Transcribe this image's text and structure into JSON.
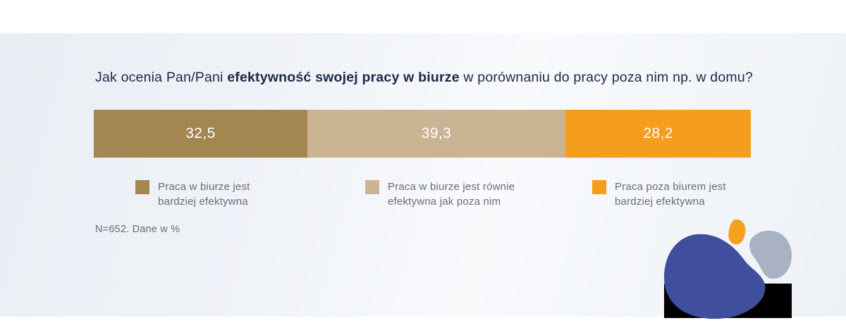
{
  "chart_data": {
    "type": "bar",
    "variant": "horizontal-stacked-100",
    "title": {
      "prefix": "Jak ocenia Pan/Pani ",
      "bold": "efektywność swojej pracy w biurze",
      "suffix": " w porównaniu do pracy poza nim np. w domu?"
    },
    "categories": [
      "Praca w biurze jest bardziej efektywna",
      "Praca w biurze jest równie efektywna jak poza nim",
      "Praca poza biurem jest bardziej efektywna"
    ],
    "values": [
      32.5,
      39.3,
      28.2
    ],
    "value_labels": [
      "32,5",
      "39,3",
      "28,2"
    ],
    "colors": [
      "#a48650",
      "#cbb493",
      "#f59d1d"
    ],
    "xlim": [
      0,
      100
    ],
    "grid": false,
    "legend_position": "below",
    "legend": [
      {
        "color": "#a48650",
        "lines": [
          "Praca w biurze jest",
          "bardziej efektywna"
        ]
      },
      {
        "color": "#cbb493",
        "lines": [
          "Praca w biurze jest równie",
          "efektywna jak poza nim"
        ]
      },
      {
        "color": "#f59d1d",
        "lines": [
          "Praca poza biurem jest",
          "bardziej efektywna"
        ]
      }
    ],
    "note": "N=652. Dane w %"
  },
  "theme": {
    "title_color": "#1e284b",
    "text_gray": "#696d73",
    "panel_tint": "#edf1f6"
  },
  "decor": {
    "blob_blue": "#3f4e9d",
    "blob_gray": "#a9b2c5",
    "blob_orange": "#f5a01e",
    "redaction_box": "#000000"
  }
}
